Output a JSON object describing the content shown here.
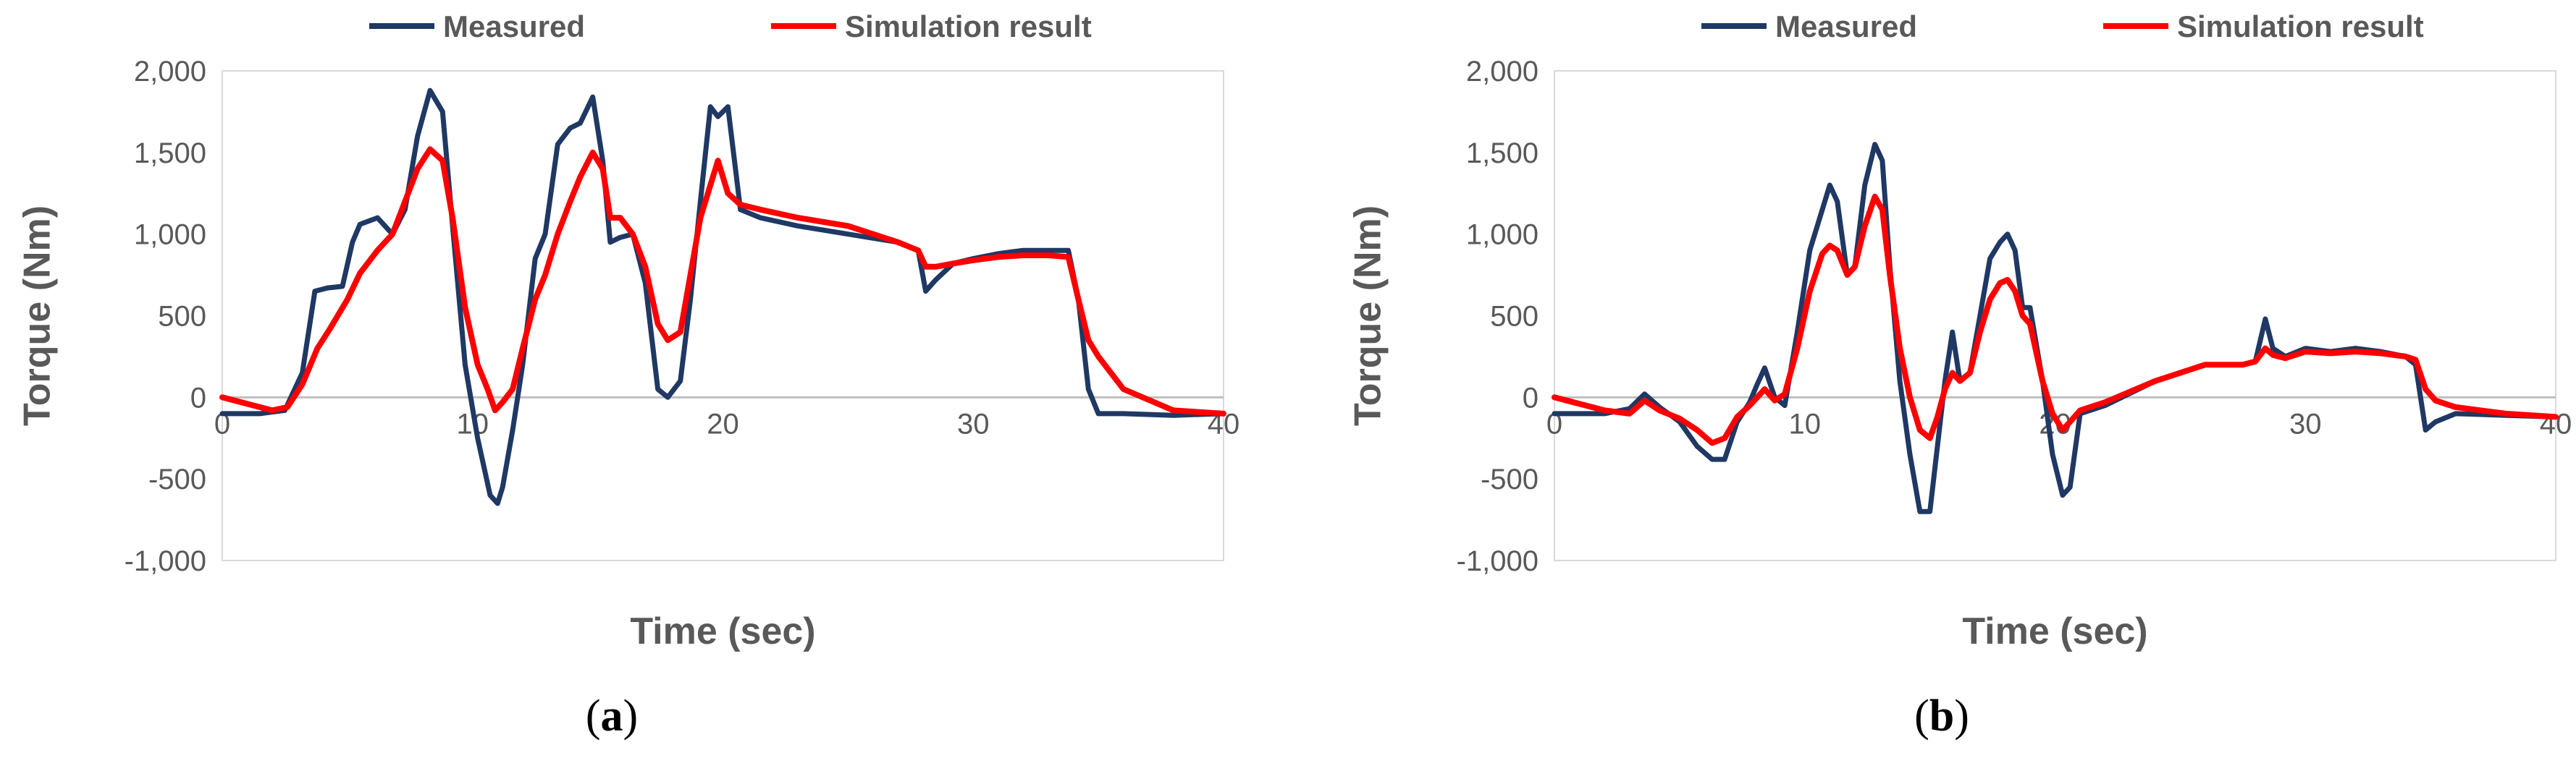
{
  "colors": {
    "measured": "#1F3864",
    "simulation": "#FF0000",
    "axis": "#BFBFBF",
    "text": "#595959"
  },
  "chart_data": [
    {
      "type": "line",
      "panel_label": "a",
      "xlabel": "Time (sec)",
      "ylabel": "Torque (Nm)",
      "xlim": [
        0,
        40
      ],
      "ylim": [
        -1000,
        2000
      ],
      "xticks": [
        0,
        10,
        20,
        30,
        40
      ],
      "yticks": [
        -1000,
        -500,
        0,
        500,
        1000,
        1500,
        2000
      ],
      "ytick_labels": [
        "-1,000",
        "-500",
        "0",
        "500",
        "1,000",
        "1,500",
        "2,000"
      ],
      "grid": false,
      "legend": "top",
      "series": [
        {
          "name": "Measured",
          "color": "#1F3864",
          "x": [
            0,
            1.5,
            2.5,
            3.2,
            3.7,
            4.2,
            4.8,
            5.2,
            5.5,
            6.2,
            6.8,
            7.3,
            7.8,
            8.3,
            8.8,
            9.2,
            9.7,
            10.2,
            10.7,
            11.0,
            11.2,
            11.6,
            12.0,
            12.5,
            12.9,
            13.4,
            13.9,
            14.3,
            14.8,
            15.2,
            15.5,
            15.9,
            16.4,
            16.9,
            17.4,
            17.8,
            18.3,
            18.7,
            19.1,
            19.5,
            19.8,
            20.2,
            20.7,
            21.5,
            23.0,
            25.0,
            27.0,
            27.8,
            28.1,
            28.5,
            29.2,
            30.0,
            31.0,
            32.0,
            33.0,
            33.8,
            34.2,
            34.6,
            35.0,
            36.0,
            38.0,
            40.0
          ],
          "y": [
            -100,
            -100,
            -80,
            150,
            650,
            670,
            680,
            950,
            1060,
            1100,
            1000,
            1150,
            1600,
            1880,
            1750,
            1050,
            200,
            -250,
            -600,
            -650,
            -550,
            -200,
            200,
            850,
            1000,
            1550,
            1650,
            1680,
            1840,
            1450,
            950,
            980,
            1000,
            700,
            50,
            0,
            100,
            600,
            1200,
            1780,
            1720,
            1780,
            1150,
            1100,
            1050,
            1000,
            950,
            900,
            650,
            720,
            820,
            850,
            880,
            900,
            900,
            900,
            600,
            50,
            -100,
            -100,
            -110,
            -100
          ]
        },
        {
          "name": "Simulation result",
          "color": "#FF0000",
          "x": [
            0,
            1.0,
            2.0,
            2.6,
            3.2,
            3.8,
            4.3,
            5.0,
            5.5,
            6.2,
            6.8,
            7.3,
            7.8,
            8.3,
            8.8,
            9.2,
            9.7,
            10.2,
            10.6,
            10.9,
            11.2,
            11.6,
            12.0,
            12.5,
            12.9,
            13.4,
            13.9,
            14.3,
            14.8,
            15.2,
            15.5,
            15.9,
            16.4,
            16.9,
            17.4,
            17.8,
            18.3,
            18.7,
            19.1,
            19.5,
            19.8,
            20.2,
            20.7,
            21.5,
            23.0,
            25.0,
            27.0,
            27.8,
            28.1,
            28.5,
            29.2,
            30.0,
            31.0,
            32.0,
            33.0,
            33.8,
            34.2,
            34.6,
            35.0,
            36.0,
            38.0,
            40.0
          ],
          "y": [
            0,
            -40,
            -80,
            -60,
            80,
            300,
            420,
            600,
            760,
            900,
            1000,
            1200,
            1400,
            1520,
            1450,
            1100,
            550,
            200,
            50,
            -80,
            -30,
            50,
            300,
            600,
            750,
            1000,
            1200,
            1350,
            1500,
            1400,
            1100,
            1100,
            1000,
            800,
            450,
            350,
            400,
            750,
            1100,
            1300,
            1450,
            1250,
            1180,
            1150,
            1100,
            1050,
            950,
            900,
            800,
            800,
            820,
            840,
            860,
            870,
            870,
            860,
            600,
            350,
            250,
            50,
            -80,
            -100
          ]
        }
      ]
    },
    {
      "type": "line",
      "panel_label": "b",
      "xlabel": "Time (sec)",
      "ylabel": "Torque (Nm)",
      "xlim": [
        0,
        40
      ],
      "ylim": [
        -1000,
        2000
      ],
      "xticks": [
        0,
        10,
        20,
        30,
        40
      ],
      "yticks": [
        -1000,
        -500,
        0,
        500,
        1000,
        1500,
        2000
      ],
      "ytick_labels": [
        "-1,000",
        "-500",
        "0",
        "500",
        "1,000",
        "1,500",
        "2,000"
      ],
      "grid": false,
      "legend": "top",
      "series": [
        {
          "name": "Measured",
          "color": "#1F3864",
          "x": [
            0,
            2.0,
            3.0,
            3.6,
            4.2,
            5.0,
            5.7,
            6.3,
            6.8,
            7.3,
            7.8,
            8.1,
            8.4,
            8.8,
            9.2,
            9.7,
            10.2,
            10.7,
            11.0,
            11.3,
            11.7,
            12.0,
            12.4,
            12.8,
            13.1,
            13.4,
            13.8,
            14.2,
            14.6,
            15.0,
            15.3,
            15.6,
            15.9,
            16.2,
            16.6,
            17.0,
            17.4,
            17.8,
            18.1,
            18.4,
            18.7,
            19.0,
            19.5,
            19.9,
            20.3,
            20.6,
            21.0,
            22.0,
            24.0,
            26.0,
            27.5,
            28.0,
            28.4,
            28.7,
            29.2,
            30.0,
            31.0,
            32.0,
            33.0,
            34.0,
            34.4,
            34.8,
            35.2,
            36.0,
            38.0,
            40.0
          ],
          "y": [
            -100,
            -100,
            -70,
            20,
            -60,
            -150,
            -300,
            -380,
            -380,
            -150,
            -30,
            80,
            180,
            0,
            -50,
            400,
            900,
            1150,
            1300,
            1200,
            750,
            800,
            1300,
            1550,
            1450,
            800,
            100,
            -350,
            -700,
            -700,
            -300,
            100,
            400,
            100,
            150,
            500,
            850,
            950,
            1000,
            900,
            550,
            550,
            100,
            -350,
            -600,
            -550,
            -100,
            -50,
            100,
            200,
            200,
            220,
            480,
            300,
            250,
            300,
            280,
            300,
            280,
            250,
            200,
            -200,
            -150,
            -100,
            -110,
            -120
          ]
        },
        {
          "name": "Simulation result",
          "color": "#FF0000",
          "x": [
            0,
            2.0,
            3.0,
            3.6,
            4.2,
            5.0,
            5.7,
            6.3,
            6.8,
            7.3,
            7.8,
            8.1,
            8.4,
            8.8,
            9.2,
            9.7,
            10.2,
            10.7,
            11.0,
            11.3,
            11.7,
            12.0,
            12.4,
            12.8,
            13.1,
            13.4,
            13.8,
            14.2,
            14.6,
            15.0,
            15.3,
            15.6,
            15.9,
            16.2,
            16.6,
            17.0,
            17.4,
            17.8,
            18.1,
            18.4,
            18.7,
            19.0,
            19.5,
            19.9,
            20.3,
            20.6,
            21.0,
            22.0,
            24.0,
            26.0,
            27.5,
            28.0,
            28.4,
            28.7,
            29.2,
            30.0,
            31.0,
            32.0,
            33.0,
            34.0,
            34.4,
            34.8,
            35.2,
            36.0,
            38.0,
            40.0
          ],
          "y": [
            0,
            -80,
            -100,
            -20,
            -80,
            -130,
            -200,
            -280,
            -250,
            -120,
            -50,
            0,
            50,
            -20,
            20,
            300,
            650,
            880,
            930,
            900,
            750,
            800,
            1050,
            1230,
            1150,
            750,
            300,
            0,
            -200,
            -250,
            -120,
            50,
            150,
            100,
            150,
            400,
            600,
            700,
            720,
            650,
            500,
            450,
            100,
            -100,
            -200,
            -150,
            -80,
            -30,
            100,
            200,
            200,
            220,
            300,
            260,
            240,
            280,
            270,
            280,
            270,
            250,
            230,
            50,
            -20,
            -60,
            -100,
            -120
          ]
        }
      ]
    }
  ]
}
